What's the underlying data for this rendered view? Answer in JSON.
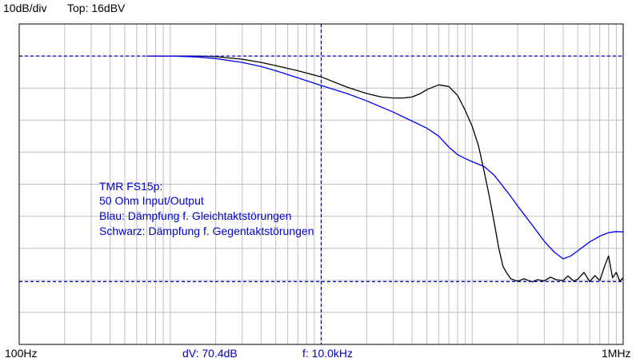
{
  "header": {
    "scale": "10dB/div",
    "top": "Top:  16dBV"
  },
  "footer": {
    "x_min_label": "100Hz",
    "x_max_label": "1MHz",
    "dv_readout": "dV: 70.4dB",
    "f_readout": "f: 10.0kHz"
  },
  "chart_data": {
    "type": "line",
    "x_scale": "log",
    "xlim": [
      100,
      1000000
    ],
    "ylim": [
      -84,
      16
    ],
    "y_unit": "dBV",
    "grid": true,
    "colors": {
      "frame": "#000000",
      "grid": "#c0c0c0",
      "cursor": "#0000cc",
      "series_black": "#000000",
      "series_blue": "#0000ff",
      "annotation": "#0000cc"
    },
    "cursors": {
      "vertical_x": 10000,
      "horizontal_y": [
        6,
        -64.4
      ]
    },
    "annotations": [
      "TMR FS15p:",
      "50 Ohm Input/Output",
      "Blau: Dämpfung f. Gleichtaktstörungen",
      "Schwarz: Dämpfung f. Gegentaktstörungen"
    ],
    "series": [
      {
        "color": "#000000",
        "x": [
          700,
          1000,
          1500,
          2000,
          3000,
          4000,
          5000,
          7000,
          10000,
          15000,
          20000,
          25000,
          30000,
          35000,
          40000,
          45000,
          50000,
          60000,
          70000,
          80000,
          90000,
          100000,
          110000,
          120000,
          130000,
          140000,
          150000,
          160000,
          170000,
          180000,
          200000,
          220000,
          250000,
          270000,
          300000,
          330000,
          360000,
          400000,
          430000,
          470000,
          500000,
          550000,
          600000,
          650000,
          700000,
          750000,
          800000,
          850000,
          900000,
          950000,
          1000000
        ],
        "y": [
          6,
          6,
          6,
          5.8,
          5,
          4,
          3,
          1.4,
          -0.5,
          -3.8,
          -5.7,
          -6.8,
          -7.1,
          -7.1,
          -6.8,
          -5.8,
          -4.5,
          -3,
          -3.5,
          -6.3,
          -11,
          -16,
          -22,
          -30,
          -38,
          -46,
          -54,
          -59.7,
          -61.8,
          -63.5,
          -64.3,
          -63.5,
          -64.5,
          -63.8,
          -64.2,
          -63,
          -63.8,
          -64.1,
          -62.6,
          -64.2,
          -63.7,
          -61.5,
          -64.4,
          -62.5,
          -64.1,
          -59.8,
          -56.4,
          -63.2,
          -61.5,
          -64.3,
          -63.2
        ]
      },
      {
        "color": "#0000ff",
        "x": [
          700,
          1000,
          1500,
          2000,
          3000,
          4000,
          5000,
          7000,
          10000,
          15000,
          20000,
          30000,
          40000,
          50000,
          60000,
          70000,
          80000,
          90000,
          100000,
          120000,
          140000,
          160000,
          180000,
          200000,
          250000,
          300000,
          350000,
          400000,
          450000,
          500000,
          600000,
          700000,
          800000,
          900000,
          1000000
        ],
        "y": [
          6,
          6,
          5.7,
          5.2,
          4,
          2.7,
          1.4,
          -0.8,
          -3.2,
          -5.8,
          -8,
          -11.5,
          -14.3,
          -16.5,
          -19,
          -22.4,
          -24.8,
          -26,
          -27,
          -28.5,
          -31.2,
          -34.7,
          -37.8,
          -40.8,
          -46.8,
          -51.8,
          -55.2,
          -57.3,
          -56.4,
          -54.8,
          -52,
          -50.2,
          -49.1,
          -48.8,
          -48.9
        ]
      }
    ]
  }
}
